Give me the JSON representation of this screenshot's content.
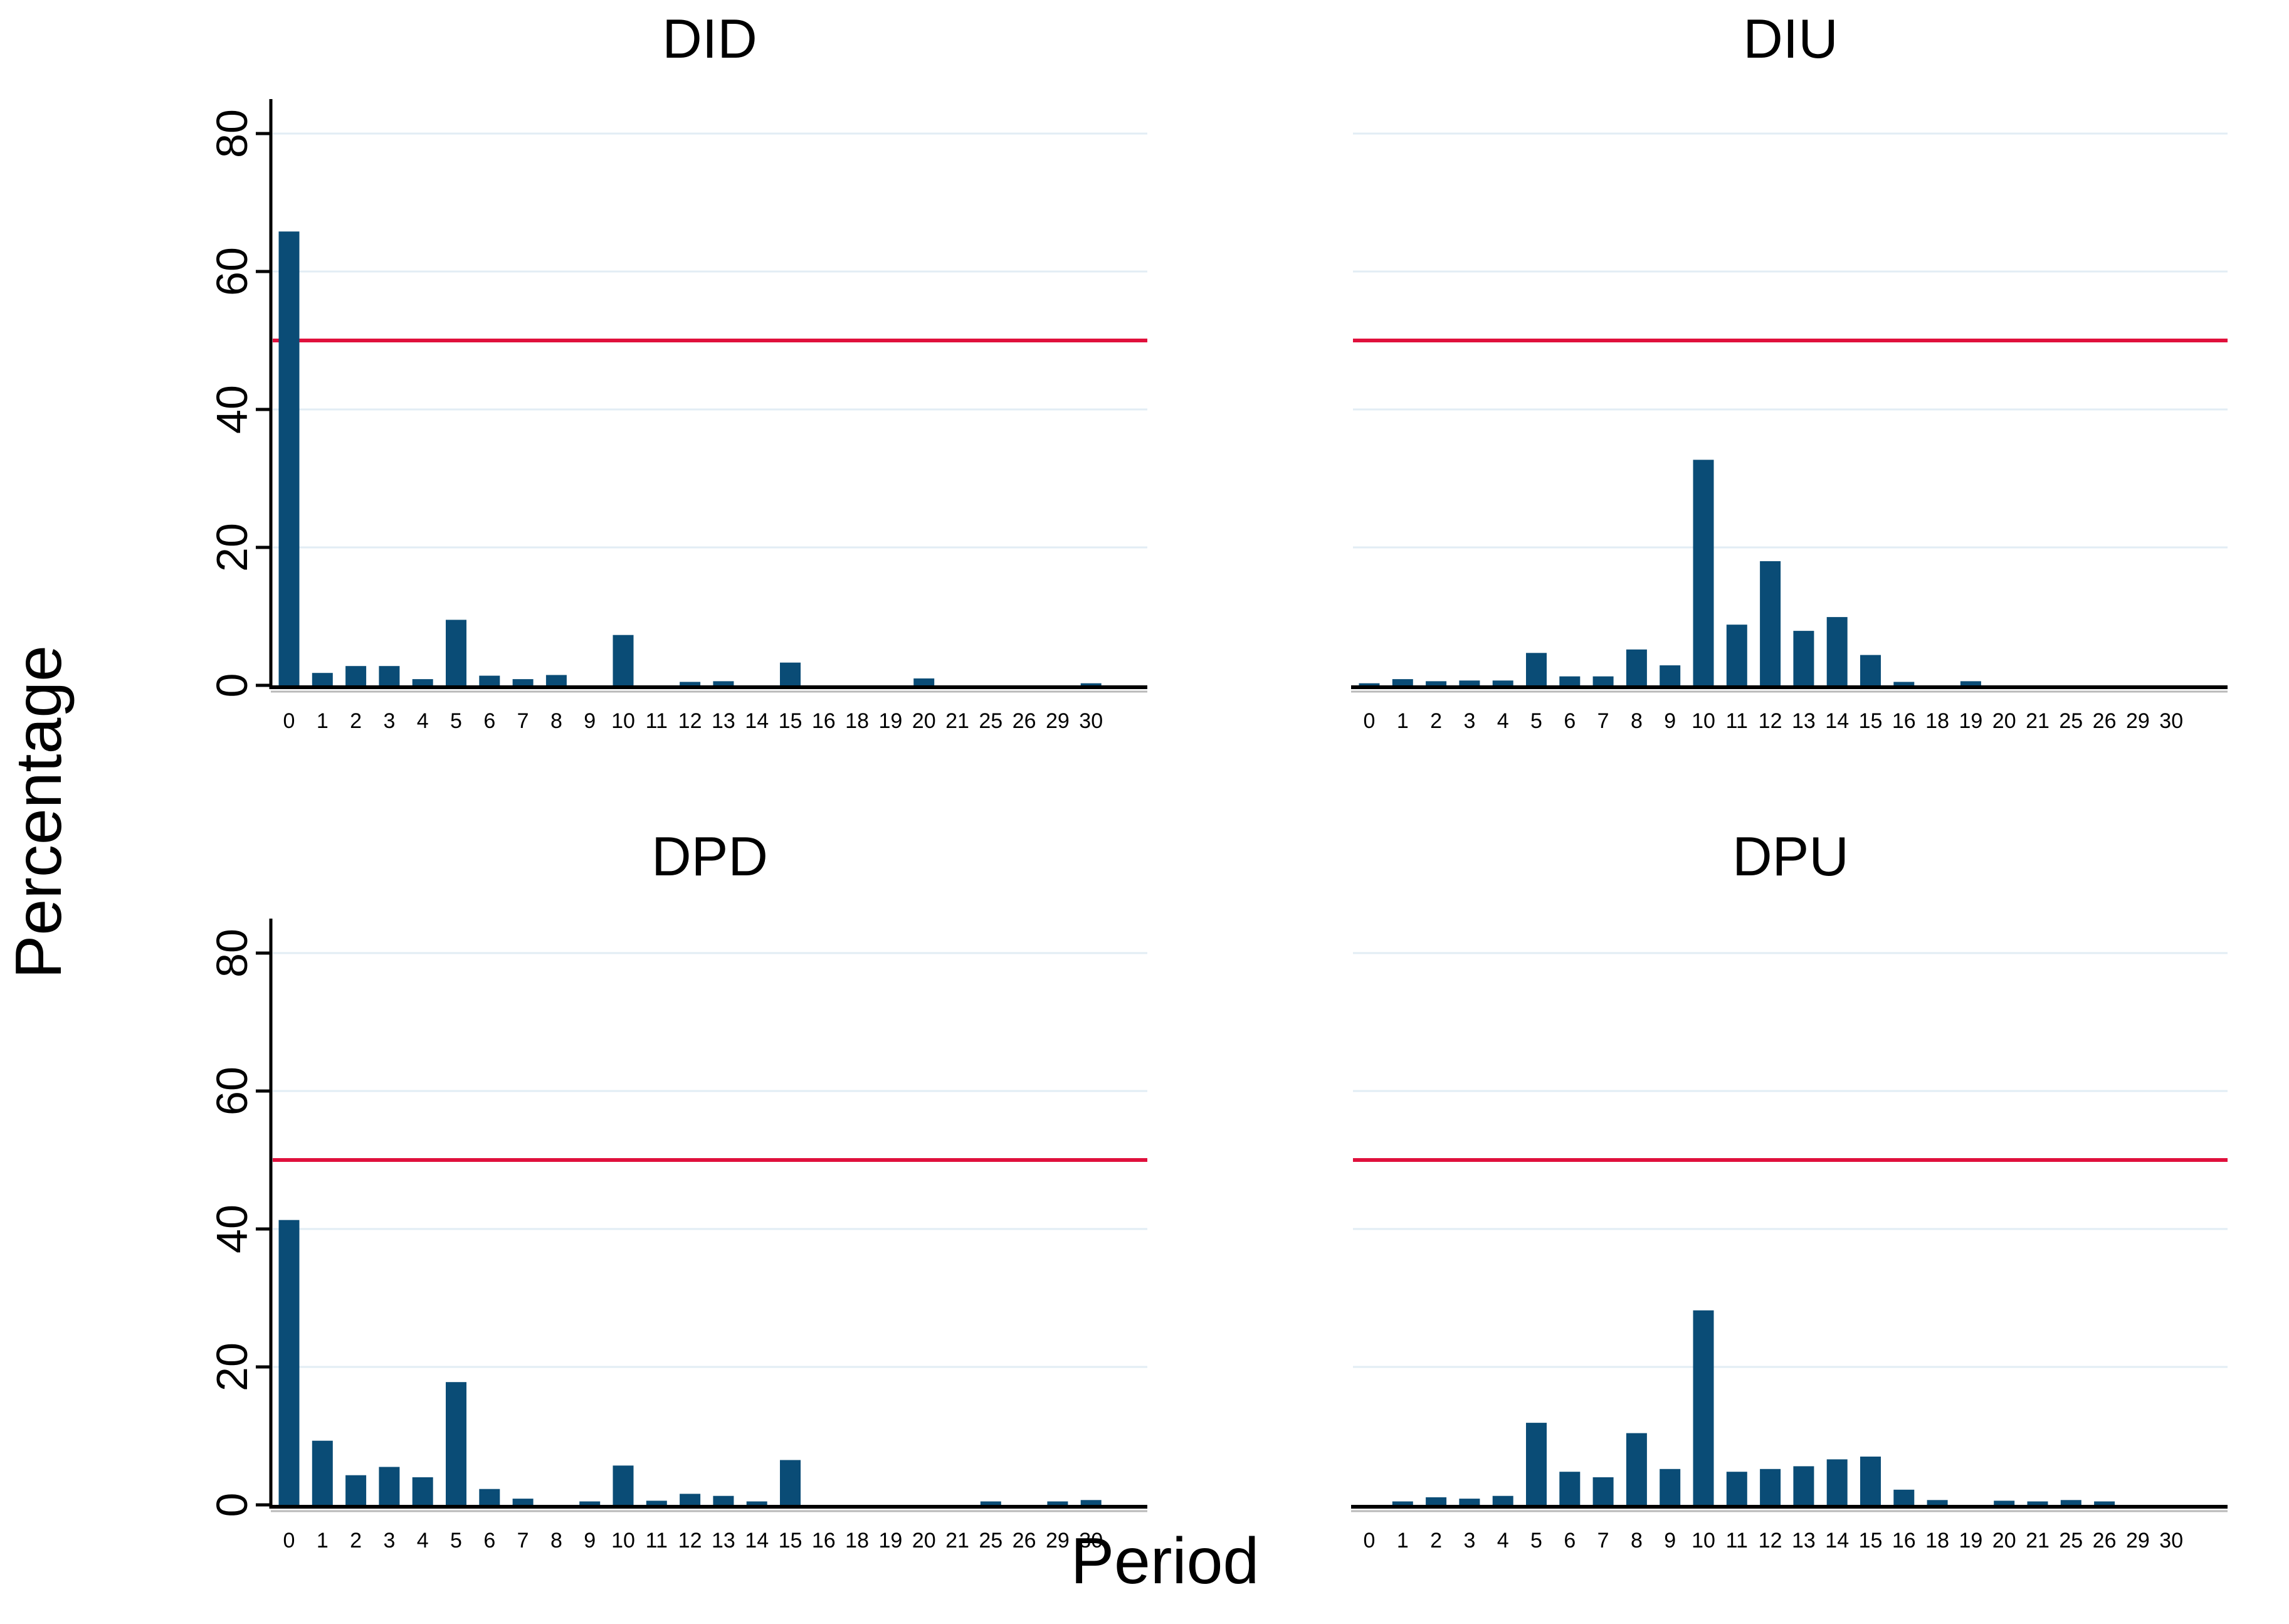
{
  "figure": {
    "ylabel": "Percentage",
    "xlabel": "Period",
    "colors": {
      "bar": "#0a4c76",
      "refline": "#e0103c",
      "grid": "#e2edf4",
      "axis": "#000000",
      "axis_shadow": "#b9b9b9"
    }
  },
  "chart_data": [
    {
      "type": "bar",
      "title": "DID",
      "categories": [
        "0",
        "1",
        "2",
        "3",
        "4",
        "5",
        "6",
        "7",
        "8",
        "9",
        "10",
        "11",
        "12",
        "13",
        "14",
        "15",
        "16",
        "18",
        "19",
        "20",
        "21",
        "25",
        "26",
        "29",
        "30"
      ],
      "values": [
        65.8,
        1.8,
        2.8,
        2.8,
        0.9,
        9.5,
        1.4,
        0.9,
        1.5,
        0,
        7.3,
        0,
        0.5,
        0.6,
        0,
        3.3,
        0,
        0,
        0,
        1.0,
        0,
        0,
        0,
        0,
        0.3
      ],
      "xlabel": "",
      "ylabel": "",
      "ylim": [
        0,
        85
      ],
      "yticks": [
        0,
        20,
        40,
        60,
        80
      ],
      "refline_y": 50,
      "grid": true,
      "legend": "none"
    },
    {
      "type": "bar",
      "title": "DIU",
      "categories": [
        "0",
        "1",
        "2",
        "3",
        "4",
        "5",
        "6",
        "7",
        "8",
        "9",
        "10",
        "11",
        "12",
        "13",
        "14",
        "15",
        "16",
        "18",
        "19",
        "20",
        "21",
        "25",
        "26",
        "29",
        "30"
      ],
      "values": [
        0.3,
        0.9,
        0.6,
        0.7,
        0.7,
        4.7,
        1.3,
        1.3,
        5.2,
        2.9,
        32.7,
        8.8,
        18.0,
        7.9,
        9.9,
        4.4,
        0.5,
        0,
        0.6,
        0,
        0,
        0,
        0,
        0,
        0
      ],
      "xlabel": "",
      "ylabel": "",
      "ylim": [
        0,
        85
      ],
      "yticks": [
        0,
        20,
        40,
        60,
        80
      ],
      "refline_y": 50,
      "grid": true,
      "legend": "none"
    },
    {
      "type": "bar",
      "title": "DPD",
      "categories": [
        "0",
        "1",
        "2",
        "3",
        "4",
        "5",
        "6",
        "7",
        "8",
        "9",
        "10",
        "11",
        "12",
        "13",
        "14",
        "15",
        "16",
        "18",
        "19",
        "20",
        "21",
        "25",
        "26",
        "29",
        "30"
      ],
      "values": [
        41.3,
        9.3,
        4.3,
        5.5,
        4.0,
        17.8,
        2.3,
        0.9,
        0,
        0.5,
        5.7,
        0.6,
        1.6,
        1.3,
        0.5,
        6.5,
        0,
        0,
        0,
        0,
        0,
        0.5,
        0,
        0.5,
        0.7
      ],
      "xlabel": "",
      "ylabel": "",
      "ylim": [
        0,
        85
      ],
      "yticks": [
        0,
        20,
        40,
        60,
        80
      ],
      "refline_y": 50,
      "grid": true,
      "legend": "none"
    },
    {
      "type": "bar",
      "title": "DPU",
      "categories": [
        "0",
        "1",
        "2",
        "3",
        "4",
        "5",
        "6",
        "7",
        "8",
        "9",
        "10",
        "11",
        "12",
        "13",
        "14",
        "15",
        "16",
        "18",
        "19",
        "20",
        "21",
        "25",
        "26",
        "29",
        "30"
      ],
      "values": [
        0,
        0.5,
        1.1,
        0.9,
        1.3,
        11.9,
        4.8,
        4.0,
        10.4,
        5.2,
        28.2,
        4.8,
        5.2,
        5.6,
        6.6,
        7.0,
        2.2,
        0.7,
        0,
        0.6,
        0.5,
        0.7,
        0.5,
        0,
        0
      ],
      "xlabel": "",
      "ylabel": "",
      "ylim": [
        0,
        85
      ],
      "yticks": [
        0,
        20,
        40,
        60,
        80
      ],
      "refline_y": 50,
      "grid": true,
      "legend": "none"
    }
  ]
}
